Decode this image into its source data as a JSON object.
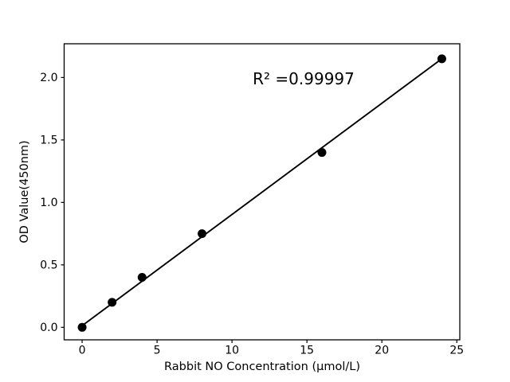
{
  "figure": {
    "background_color": "#ffffff",
    "text_color": "#000000"
  },
  "chart_data": {
    "type": "scatter",
    "title": "",
    "xlabel": "Rabbit NO Concentration (μmol/L)",
    "ylabel": "OD Value(450nm)",
    "annotation": "R² =0.99997",
    "r_squared": 0.99997,
    "x": [
      0,
      2,
      4,
      8,
      16,
      24
    ],
    "y": [
      0.0,
      0.2,
      0.4,
      0.75,
      1.4,
      2.15
    ],
    "fit_line": {
      "x": [
        0,
        24
      ],
      "y": [
        0.013,
        2.15
      ]
    },
    "xlim": [
      -1.2,
      25.2
    ],
    "ylim": [
      -0.1,
      2.27
    ],
    "x_ticks": [
      0,
      5,
      10,
      15,
      20,
      25
    ],
    "x_tick_labels": [
      "0",
      "5",
      "10",
      "15",
      "20",
      "25"
    ],
    "y_ticks": [
      0.0,
      0.5,
      1.0,
      1.5,
      2.0
    ],
    "y_tick_labels": [
      "0.0",
      "0.5",
      "1.0",
      "1.5",
      "2.0"
    ],
    "grid": false,
    "legend": null,
    "marker_color": "#000000",
    "marker_size_px": 11,
    "line_color": "#000000"
  }
}
